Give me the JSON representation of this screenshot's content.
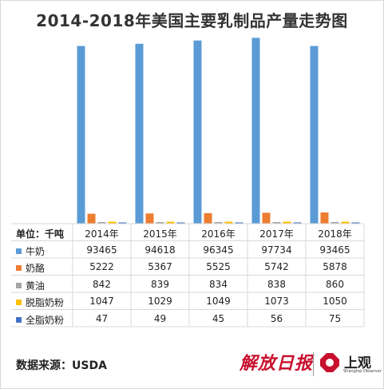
{
  "title": "2014-2018年美国主要乳制品产量走势图",
  "unit_label": "单位：千吨",
  "source": "数据来源：USDA",
  "logos": {
    "left": "解放日报",
    "right": "上观",
    "right_sub": "Shanghai Observer"
  },
  "colors": {
    "milk": "#5b9bd5",
    "cheese": "#ed7d31",
    "butter": "#a5a5a5",
    "skim_powder": "#ffc000",
    "whole_powder": "#4472c4",
    "brand_red": "#c8102e"
  },
  "chart_data": {
    "type": "bar",
    "title": "2014-2018年美国主要乳制品产量走势图",
    "unit": "单位：千吨",
    "categories": [
      "2014年",
      "2015年",
      "2016年",
      "2017年",
      "2018年"
    ],
    "ylim": [
      0,
      100000
    ],
    "grid": false,
    "legend": "table",
    "series": [
      {
        "name": "牛奶",
        "values": [
          93465,
          94618,
          96345,
          97734,
          93465
        ],
        "display": [
          "93465",
          "94618",
          "96345",
          "97734",
          "93465"
        ],
        "color": "#5b9bd5"
      },
      {
        "name": "奶酪",
        "values": [
          5222,
          5367,
          5525,
          5742,
          5878
        ],
        "display": [
          "5222",
          "5367",
          "5525",
          "5742",
          "5878"
        ],
        "color": "#ed7d31"
      },
      {
        "name": "黄油",
        "values": [
          842,
          839,
          834,
          838,
          860
        ],
        "display": [
          "842",
          "839",
          "834",
          "838",
          "860"
        ],
        "color": "#a5a5a5"
      },
      {
        "name": "脱脂奶粉",
        "values": [
          1047,
          1029,
          1049,
          1073,
          1050
        ],
        "display": [
          "1047",
          "1029",
          "1049",
          "1073",
          "1050"
        ],
        "color": "#ffc000"
      },
      {
        "name": "全脂奶粉",
        "values": [
          47,
          49,
          45,
          56,
          75
        ],
        "display": [
          "47",
          "49",
          "45",
          "56",
          "75"
        ],
        "color": "#4472c4"
      }
    ]
  }
}
